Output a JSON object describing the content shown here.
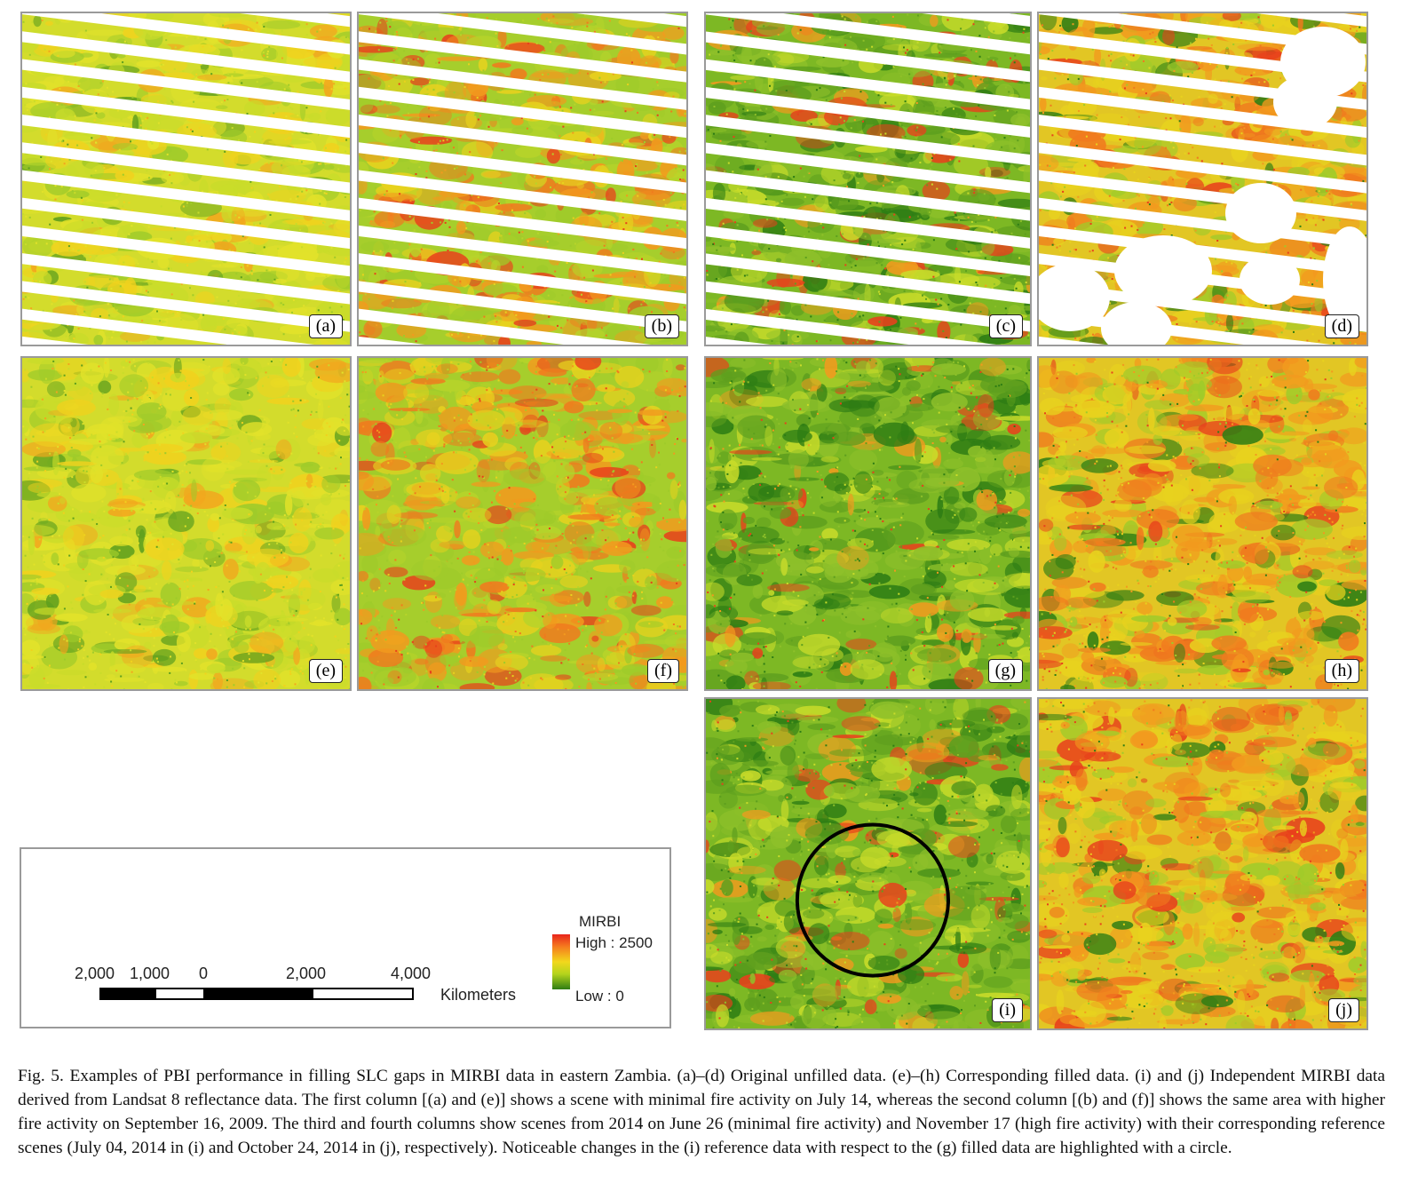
{
  "panels": {
    "a": {
      "label": "(a)",
      "type": "unfilled",
      "style": "low"
    },
    "b": {
      "label": "(b)",
      "type": "unfilled",
      "style": "high"
    },
    "c": {
      "label": "(c)",
      "type": "unfilled",
      "style": "mixed"
    },
    "d": {
      "label": "(d)",
      "type": "unfilled-clouds",
      "style": "highorange"
    },
    "e": {
      "label": "(e)",
      "type": "filled",
      "style": "low"
    },
    "f": {
      "label": "(f)",
      "type": "filled",
      "style": "high"
    },
    "g": {
      "label": "(g)",
      "type": "filled",
      "style": "mixed"
    },
    "h": {
      "label": "(h)",
      "type": "filled",
      "style": "highorange"
    },
    "i": {
      "label": "(i)",
      "type": "reference",
      "style": "mixed"
    },
    "j": {
      "label": "(j)",
      "type": "reference",
      "style": "highorange"
    }
  },
  "legend": {
    "scale_ticks": [
      "2,000",
      "1,000",
      "0",
      "2,000",
      "4,000"
    ],
    "scale_unit": "Kilometers",
    "ramp_title": "MIRBI",
    "ramp_high": "High : 2500",
    "ramp_low": "Low : 0",
    "ramp_colors": [
      "#e8241c",
      "#f57a1e",
      "#f2d81c",
      "#b4d41c",
      "#2e7d14"
    ]
  },
  "caption": "Fig. 5.  Examples of PBI performance in filling SLC gaps in MIRBI data in eastern Zambia. (a)–(d) Original unfilled data. (e)–(h) Corresponding filled data. (i) and (j) Independent MIRBI data derived from Landsat 8 reflectance data. The first column [(a) and (e)] shows a scene with minimal fire activity on July 14, whereas the second column [(b) and (f)] shows the same area with higher fire activity on September 16, 2009. The third and fourth columns show scenes from 2014 on June 26 (minimal fire activity) and November 17 (high fire activity) with their corresponding reference scenes (July 04, 2014 in (i) and October 24, 2014 in (j), respectively). Noticeable changes in the (i) reference data with respect to the (g) filled data are highlighted with a circle."
}
